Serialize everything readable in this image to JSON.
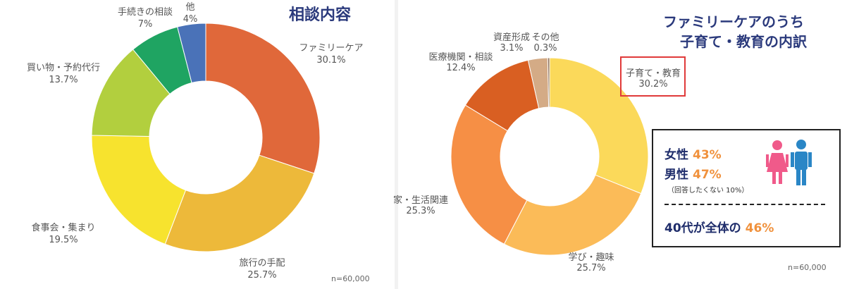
{
  "chart_data": [
    {
      "type": "pie",
      "title": "相談内容",
      "categories": [
        "ファミリーケア",
        "旅行の手配",
        "食事会・集まり",
        "買い物・予約代行",
        "手続きの相談",
        "他"
      ],
      "value_labels": [
        "30.1%",
        "25.7%",
        "19.5%",
        "13.7%",
        "7%",
        "4%"
      ],
      "values": [
        30.1,
        25.7,
        19.5,
        13.7,
        7,
        4
      ],
      "colors": [
        "#e0683a",
        "#edb93a",
        "#f7e32e",
        "#b2cf3e",
        "#1fa462",
        "#4a72b8"
      ],
      "note": "n=60,000"
    },
    {
      "type": "pie",
      "title": [
        "ファミリーケアのうち",
        "子育て・教育の内訳"
      ],
      "categories": [
        "子育て・教育",
        "学び・趣味",
        "家・生活関連",
        "医療機関・相談",
        "資産形成",
        "その他"
      ],
      "value_labels": [
        "30.2%",
        "25.7%",
        "25.3%",
        "12.4%",
        "3.1%",
        "0.3%"
      ],
      "values": [
        30.2,
        25.7,
        25.3,
        12.4,
        3.1,
        0.3
      ],
      "colors": [
        "#fbd95a",
        "#fbbb58",
        "#f68f45",
        "#d95f22",
        "#d4ab86",
        "#8e6e58"
      ],
      "note": "n=60,000"
    }
  ],
  "info": {
    "female_label": "女性",
    "female_pct": "43%",
    "male_label": "男性",
    "male_pct": "47%",
    "no_answer": "（回答したくない 10%）",
    "age_label": "40代が全体の",
    "age_pct": "46%",
    "icons": [
      "female-person-icon",
      "male-person-icon"
    ],
    "icon_colors": [
      "#f05a8a",
      "#2a86c6"
    ]
  }
}
